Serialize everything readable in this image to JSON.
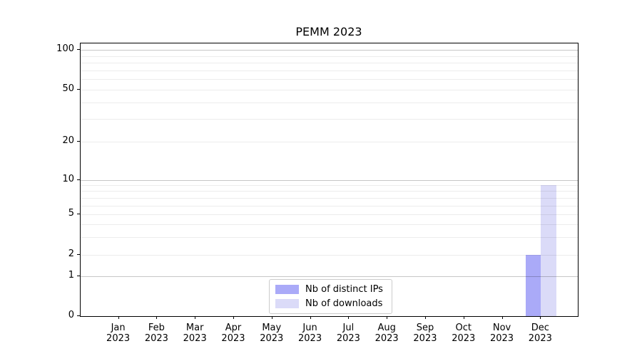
{
  "chart_data": {
    "type": "bar",
    "title": "PEMM 2023",
    "categories": [
      {
        "month": "Jan",
        "year": "2023"
      },
      {
        "month": "Feb",
        "year": "2023"
      },
      {
        "month": "Mar",
        "year": "2023"
      },
      {
        "month": "Apr",
        "year": "2023"
      },
      {
        "month": "May",
        "year": "2023"
      },
      {
        "month": "Jun",
        "year": "2023"
      },
      {
        "month": "Jul",
        "year": "2023"
      },
      {
        "month": "Aug",
        "year": "2023"
      },
      {
        "month": "Sep",
        "year": "2023"
      },
      {
        "month": "Oct",
        "year": "2023"
      },
      {
        "month": "Nov",
        "year": "2023"
      },
      {
        "month": "Dec",
        "year": "2023"
      }
    ],
    "series": [
      {
        "name": "Nb of distinct IPs",
        "color": "#aaaaf8",
        "values": [
          0,
          0,
          0,
          0,
          0,
          0,
          0,
          0,
          0,
          0,
          0,
          2
        ]
      },
      {
        "name": "Nb of downloads",
        "color": "#dbdbf8",
        "values": [
          0,
          0,
          0,
          0,
          0,
          0,
          0,
          0,
          0,
          0,
          0,
          9
        ]
      }
    ],
    "y_axis": {
      "ticks": [
        0,
        1,
        2,
        5,
        10,
        20,
        50,
        100
      ],
      "scale": "log above 1, linear 0-1",
      "ylim": [
        0,
        113
      ]
    },
    "legend": {
      "position": "lower center"
    },
    "grid": {
      "horizontal": true,
      "minor_lines": true,
      "major_line_values": [
        1,
        10,
        100
      ]
    }
  }
}
